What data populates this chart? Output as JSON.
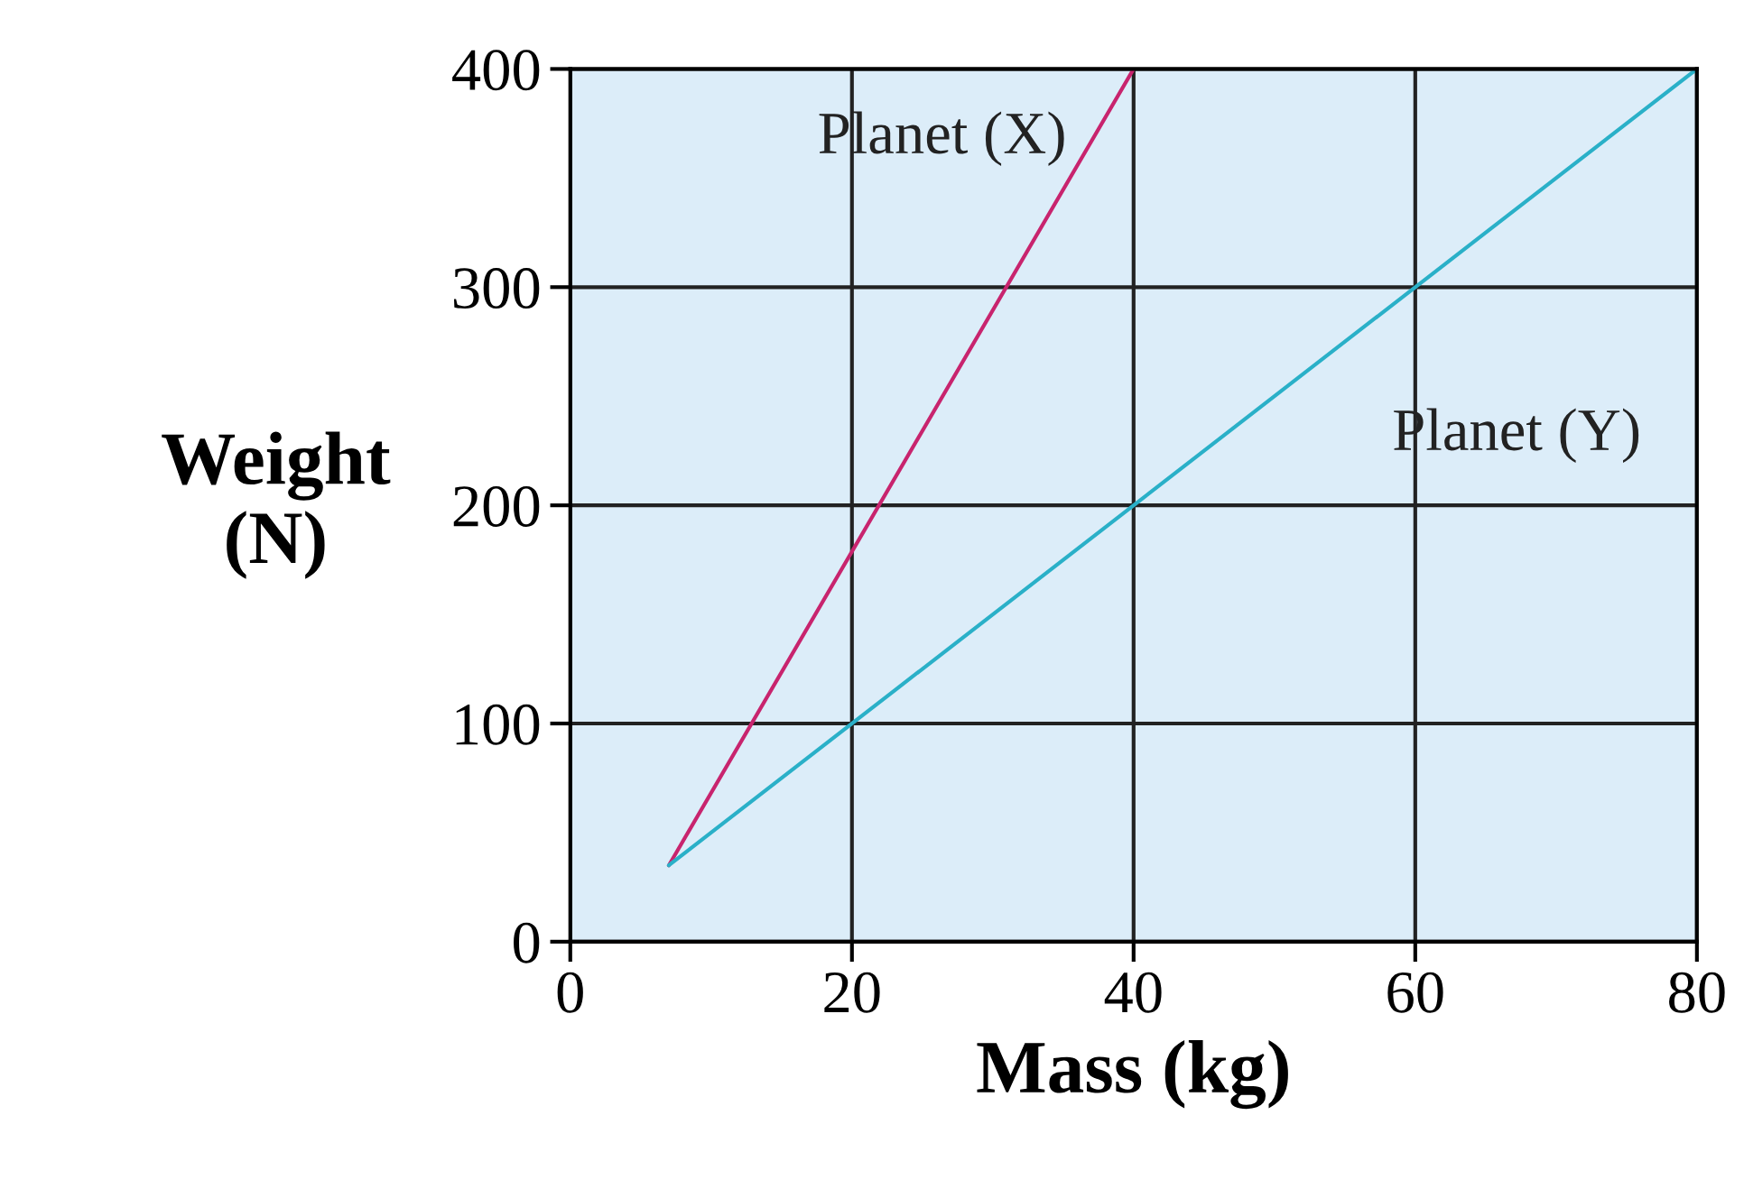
{
  "chart_data": {
    "type": "line",
    "xlabel": "Mass (kg)",
    "ylabel": "Weight\n(N)",
    "xlim": [
      0,
      80
    ],
    "ylim": [
      0,
      400
    ],
    "xticks": [
      0,
      20,
      40,
      60,
      80
    ],
    "yticks": [
      0,
      100,
      200,
      300,
      400
    ],
    "grid": true,
    "legend": false,
    "series": [
      {
        "name": "Planet (X)",
        "color": "#c8246e",
        "x": [
          7,
          40
        ],
        "values": [
          35,
          400
        ]
      },
      {
        "name": "Planet (Y)",
        "color": "#2ab0c8",
        "x": [
          7,
          80
        ],
        "values": [
          35,
          400
        ]
      }
    ]
  }
}
